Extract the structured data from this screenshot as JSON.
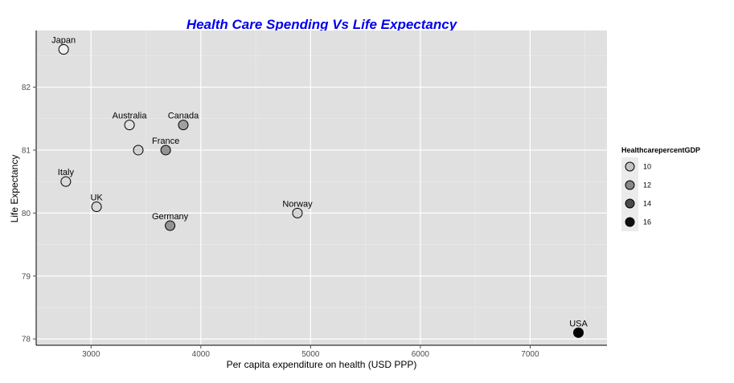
{
  "chart_data": {
    "type": "scatter",
    "title": "Health Care Spending Vs Life Expectancy",
    "xlabel": "Per capita expenditure on health (USD PPP)",
    "ylabel": "Life Expectancy",
    "xlim": [
      2500,
      7700
    ],
    "ylim": [
      77.9,
      82.9
    ],
    "xticks": [
      3000,
      4000,
      5000,
      6000,
      7000
    ],
    "yticks": [
      78,
      79,
      80,
      81,
      82
    ],
    "grid": true,
    "legend_position": "right",
    "legend_title": "HealthcarepercentGDP",
    "legend_entries": [
      10,
      12,
      14,
      16
    ],
    "color_range": {
      "min": 8,
      "max": 16.5,
      "low_color": "#ffffff",
      "high_color": "#000000"
    },
    "points": [
      {
        "label": "Japan",
        "x": 2750,
        "y": 82.6,
        "gdp_pct": 8.5
      },
      {
        "label": "Italy",
        "x": 2770,
        "y": 80.5,
        "gdp_pct": 9.2
      },
      {
        "label": "UK",
        "x": 3050,
        "y": 80.1,
        "gdp_pct": 9.3
      },
      {
        "label": "Australia",
        "x": 3350,
        "y": 81.4,
        "gdp_pct": 9.0
      },
      {
        "label": "",
        "x": 3430,
        "y": 81.0,
        "gdp_pct": 9.5
      },
      {
        "label": "France",
        "x": 3680,
        "y": 81.0,
        "gdp_pct": 11.6
      },
      {
        "label": "Canada",
        "x": 3840,
        "y": 81.4,
        "gdp_pct": 11.2
      },
      {
        "label": "Germany",
        "x": 3720,
        "y": 79.8,
        "gdp_pct": 11.6
      },
      {
        "label": "Norway",
        "x": 4880,
        "y": 80.0,
        "gdp_pct": 9.4
      },
      {
        "label": "USA",
        "x": 7440,
        "y": 78.1,
        "gdp_pct": 16.4
      }
    ]
  }
}
